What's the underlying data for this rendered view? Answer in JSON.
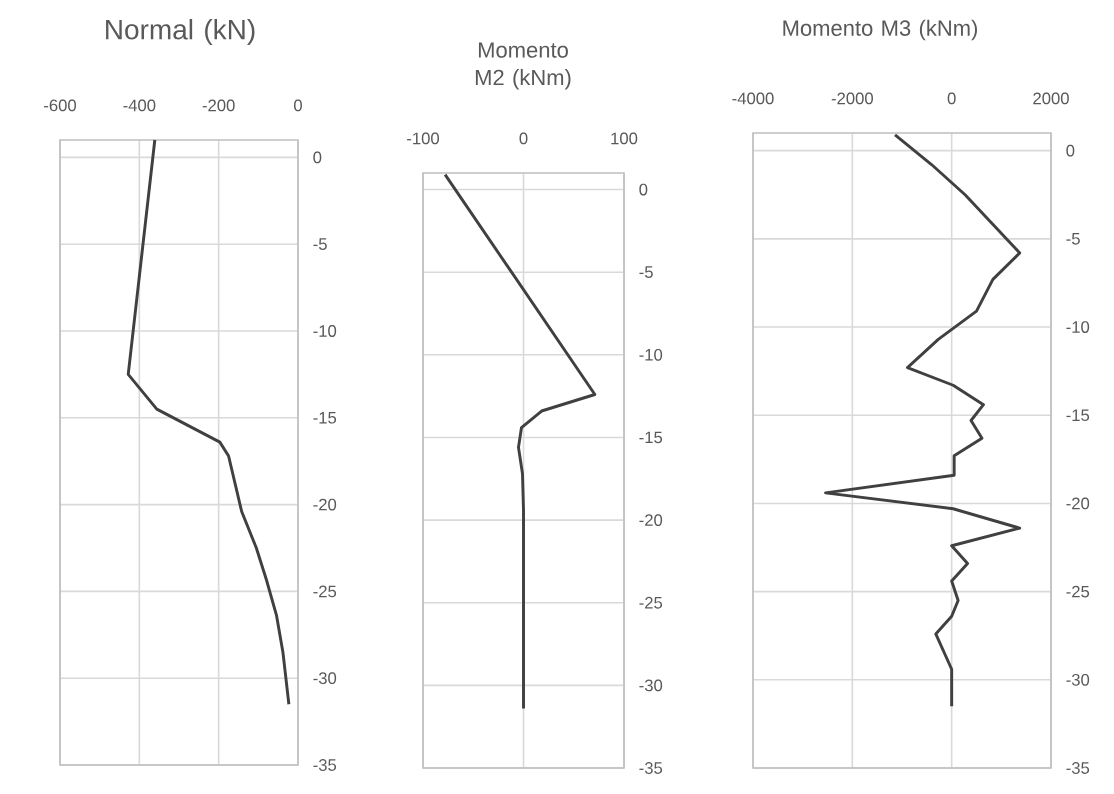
{
  "chart_data": [
    {
      "type": "line",
      "title": "Normal (kN)",
      "color": "#404040",
      "grid": true,
      "xlim": [
        -600,
        0
      ],
      "xticks": [
        -600,
        -400,
        -200,
        0
      ],
      "ylim": [
        -35,
        1
      ],
      "yticks": [
        0,
        -5,
        -10,
        -15,
        -20,
        -25,
        -30,
        -35
      ],
      "x": [
        -361,
        -428,
        -356,
        -197,
        -175,
        -142,
        -105,
        -80,
        -54,
        -38,
        -23
      ],
      "values": [
        1,
        -12.5,
        -14.5,
        -16.4,
        -17.2,
        -20.4,
        -22.5,
        -24.3,
        -26.4,
        -28.5,
        -31.5
      ]
    },
    {
      "type": "line",
      "title": "Momento M2 (kNm)",
      "color": "#404040",
      "grid": true,
      "xlim": [
        -100,
        100
      ],
      "xticks": [
        -100,
        0,
        100
      ],
      "ylim": [
        -35,
        1
      ],
      "yticks": [
        0,
        -5,
        -10,
        -15,
        -20,
        -25,
        -30,
        -35
      ],
      "x": [
        -78,
        71,
        18,
        -2,
        -5,
        -1,
        0,
        0
      ],
      "values": [
        0.9,
        -12.4,
        -13.4,
        -14.4,
        -15.6,
        -17.2,
        -19.4,
        -31.4
      ]
    },
    {
      "type": "line",
      "title": "Momento M3 (kNm)",
      "color": "#404040",
      "grid": true,
      "xlim": [
        -4000,
        2000
      ],
      "xticks": [
        -4000,
        -2000,
        0,
        2000
      ],
      "ylim": [
        -35,
        1
      ],
      "yticks": [
        0,
        -5,
        -10,
        -15,
        -20,
        -25,
        -30,
        -35
      ],
      "x": [
        -1140,
        -400,
        270,
        1370,
        830,
        500,
        -270,
        -890,
        30,
        640,
        390,
        610,
        50,
        50,
        -2540,
        30,
        1370,
        0,
        320,
        0,
        130,
        0,
        -320,
        0,
        0
      ],
      "values": [
        0.9,
        -0.8,
        -2.5,
        -5.8,
        -7.3,
        -9.1,
        -10.7,
        -12.3,
        -13.3,
        -14.4,
        -15.3,
        -16.3,
        -17.3,
        -18.4,
        -19.4,
        -20.3,
        -21.4,
        -22.4,
        -23.4,
        -24.4,
        -25.5,
        -26.4,
        -27.4,
        -29.4,
        -31.5
      ]
    }
  ]
}
